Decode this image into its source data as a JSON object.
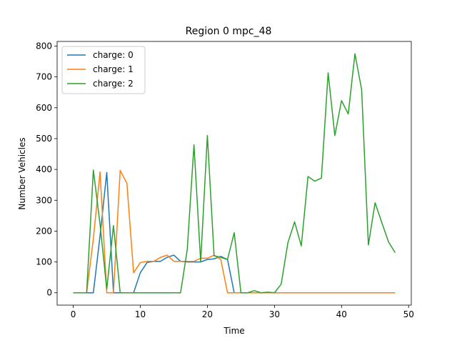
{
  "chart_data": {
    "type": "line",
    "title": "Region 0 mpc_48",
    "xlabel": "Time",
    "ylabel": "Number Vehicles",
    "xlim": [
      -2.4,
      50.4
    ],
    "ylim": [
      -40,
      815
    ],
    "xticks": [
      0,
      10,
      20,
      30,
      40,
      50
    ],
    "yticks": [
      0,
      100,
      200,
      300,
      400,
      500,
      600,
      700,
      800
    ],
    "grid": false,
    "legend_position": "top-left",
    "x": [
      0,
      1,
      2,
      3,
      4,
      5,
      6,
      7,
      8,
      9,
      10,
      11,
      12,
      13,
      14,
      15,
      16,
      17,
      18,
      19,
      20,
      21,
      22,
      23,
      24,
      25,
      26,
      27,
      28,
      29,
      30,
      31,
      32,
      33,
      34,
      35,
      36,
      37,
      38,
      39,
      40,
      41,
      42,
      43,
      44,
      45,
      46,
      47,
      48
    ],
    "series": [
      {
        "name": "charge: 0",
        "color": "#1f77b4",
        "values": [
          0,
          0,
          0,
          0,
          185,
          390,
          0,
          0,
          0,
          0,
          65,
          98,
          102,
          102,
          115,
          122,
          102,
          100,
          100,
          100,
          108,
          110,
          118,
          108,
          0,
          0,
          0,
          0,
          0,
          0,
          0,
          0,
          0,
          0,
          0,
          0,
          0,
          0,
          0,
          0,
          0,
          0,
          0,
          0,
          0,
          0,
          0,
          0,
          0
        ]
      },
      {
        "name": "charge: 1",
        "color": "#ff7f0e",
        "values": [
          0,
          0,
          0,
          175,
          392,
          0,
          0,
          397,
          355,
          65,
          98,
          102,
          102,
          115,
          122,
          102,
          102,
          102,
          102,
          112,
          112,
          122,
          108,
          0,
          0,
          0,
          0,
          0,
          0,
          0,
          0,
          0,
          0,
          0,
          0,
          0,
          0,
          0,
          0,
          0,
          0,
          0,
          0,
          0,
          0,
          0,
          0,
          0,
          0
        ]
      },
      {
        "name": "charge: 2",
        "color": "#2ca02c",
        "values": [
          0,
          0,
          0,
          398,
          222,
          12,
          218,
          0,
          0,
          0,
          0,
          0,
          0,
          0,
          0,
          0,
          0,
          140,
          480,
          100,
          510,
          120,
          115,
          108,
          195,
          0,
          0,
          7,
          0,
          2,
          0,
          28,
          162,
          230,
          152,
          377,
          362,
          372,
          713,
          510,
          623,
          580,
          775,
          658,
          155,
          292,
          228,
          165,
          130
        ]
      }
    ]
  }
}
